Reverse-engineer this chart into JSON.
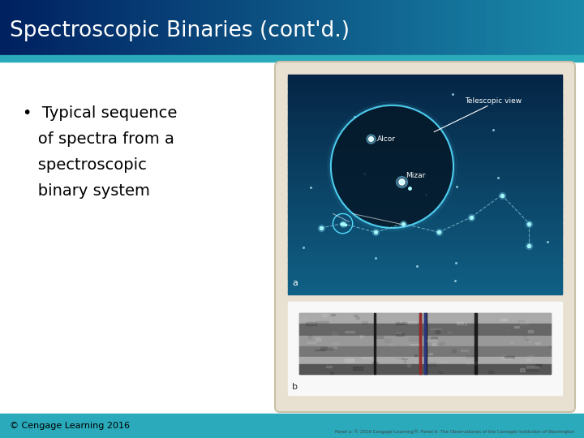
{
  "title": "Spectroscopic Binaries (cont'd.)",
  "title_text_color": "#ffffff",
  "slide_bg_color": "#ffffff",
  "teal_bar_color": "#2aaabb",
  "footer_bar_color": "#2aaabb",
  "bullet_text_line1": "•  Typical sequence",
  "bullet_text_line2": "   of spectra from a",
  "bullet_text_line3": "   spectroscopic",
  "bullet_text_line4": "   binary system",
  "bullet_color": "#000000",
  "copyright_text": "© Cengage Learning 2016",
  "caption_text": "Panel a: © 2016 Cengage Learning®; Panel b: The Observatories of the Carnegie Institution of Washington",
  "image_box_color": "#e8e0d0",
  "upper_panel_bg_top": "#0a4060",
  "upper_panel_bg_bottom": "#1a7090",
  "panel_a_label": "a",
  "panel_b_label": "b",
  "alcor_label": "Alcor",
  "mizar_label": "Mizar",
  "telescopic_label": "Telescopic view",
  "title_grad_left": "#002060",
  "title_grad_right": "#1a8aaa"
}
